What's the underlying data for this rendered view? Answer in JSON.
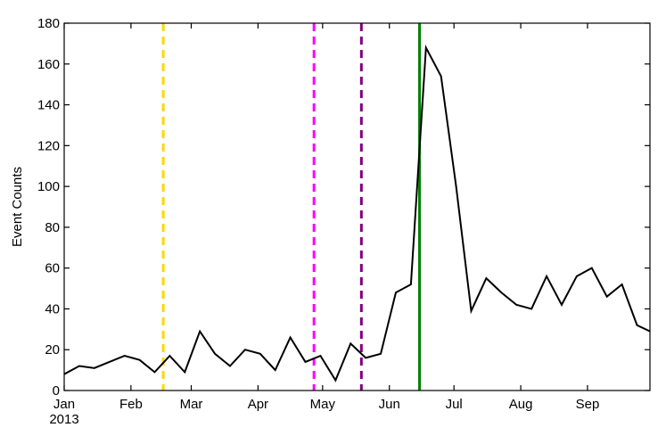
{
  "chart_data": {
    "type": "line",
    "title": "",
    "xlabel": "",
    "ylabel": "Event Counts",
    "ylim": [
      0,
      180
    ],
    "xlim": [
      "2013-01-01",
      "2013-09-30"
    ],
    "grid": false,
    "legend": "none",
    "y_ticks": [
      0,
      20,
      40,
      60,
      80,
      100,
      120,
      140,
      160,
      180
    ],
    "x_ticks": [
      {
        "date": "2013-01-01",
        "label": "Jan",
        "sublabel": "2013"
      },
      {
        "date": "2013-02-01",
        "label": "Feb",
        "sublabel": ""
      },
      {
        "date": "2013-03-01",
        "label": "Mar",
        "sublabel": ""
      },
      {
        "date": "2013-04-01",
        "label": "Apr",
        "sublabel": ""
      },
      {
        "date": "2013-05-01",
        "label": "May",
        "sublabel": ""
      },
      {
        "date": "2013-06-01",
        "label": "Jun",
        "sublabel": ""
      },
      {
        "date": "2013-07-01",
        "label": "Jul",
        "sublabel": ""
      },
      {
        "date": "2013-08-01",
        "label": "Aug",
        "sublabel": ""
      },
      {
        "date": "2013-09-01",
        "label": "Sep",
        "sublabel": ""
      }
    ],
    "series": [
      {
        "color": "#000000",
        "x": [
          "2013-01-01",
          "2013-01-08",
          "2013-01-15",
          "2013-01-22",
          "2013-01-29",
          "2013-02-05",
          "2013-02-12",
          "2013-02-19",
          "2013-02-26",
          "2013-03-05",
          "2013-03-12",
          "2013-03-19",
          "2013-03-26",
          "2013-04-02",
          "2013-04-09",
          "2013-04-16",
          "2013-04-23",
          "2013-04-30",
          "2013-05-07",
          "2013-05-14",
          "2013-05-21",
          "2013-05-28",
          "2013-06-04",
          "2013-06-11",
          "2013-06-18",
          "2013-06-25",
          "2013-07-02",
          "2013-07-09",
          "2013-07-16",
          "2013-07-23",
          "2013-07-30",
          "2013-08-06",
          "2013-08-13",
          "2013-08-20",
          "2013-08-27",
          "2013-09-03",
          "2013-09-10",
          "2013-09-17",
          "2013-09-24",
          "2013-09-30"
        ],
        "values": [
          8,
          12,
          11,
          14,
          17,
          15,
          9,
          17,
          9,
          29,
          18,
          12,
          20,
          18,
          10,
          26,
          14,
          17,
          5,
          23,
          16,
          18,
          48,
          52,
          168,
          154,
          100,
          39,
          55,
          48,
          42,
          40,
          56,
          42,
          56,
          60,
          46,
          52,
          32,
          29
        ]
      }
    ],
    "vlines": [
      {
        "date": "2013-02-16",
        "color": "#ffd700",
        "style": "dashed"
      },
      {
        "date": "2013-04-27",
        "color": "#ff00ff",
        "style": "dashed"
      },
      {
        "date": "2013-05-19",
        "color": "#800080",
        "style": "dashed"
      },
      {
        "date": "2013-06-15",
        "color": "#007f00",
        "style": "solid"
      }
    ]
  }
}
